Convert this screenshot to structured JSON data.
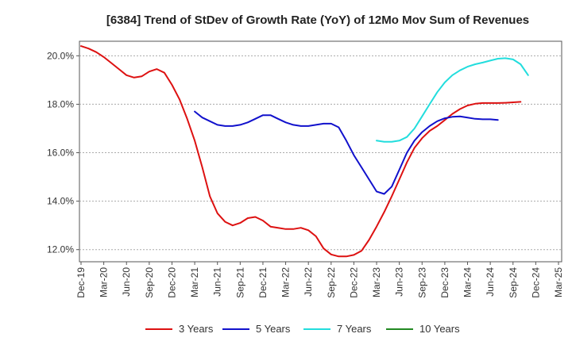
{
  "chart_data": {
    "type": "line",
    "title": "[6384]  Trend of StDev of Growth Rate (YoY) of 12Mo Mov Sum of Revenues",
    "xlabel": "",
    "ylabel": "",
    "x_tick_labels": [
      "Dec-19",
      "Mar-20",
      "Jun-20",
      "Sep-20",
      "Dec-20",
      "Mar-21",
      "Jun-21",
      "Sep-21",
      "Dec-21",
      "Mar-22",
      "Jun-22",
      "Sep-22",
      "Dec-22",
      "Mar-23",
      "Jun-23",
      "Sep-23",
      "Dec-23",
      "Mar-24",
      "Jun-24",
      "Sep-24",
      "Dec-24",
      "Mar-25"
    ],
    "y_tick_labels": [
      "12.0%",
      "14.0%",
      "16.0%",
      "18.0%",
      "20.0%"
    ],
    "y_ticks": [
      12,
      14,
      16,
      18,
      20
    ],
    "ylim": [
      11.5,
      20.6
    ],
    "x_range_months": [
      0,
      63
    ],
    "grid": "horizontal-dashed",
    "legend_position": "bottom",
    "series": [
      {
        "name": "3 Years",
        "color": "#dd1111",
        "start_month": 0,
        "values": [
          20.4,
          20.3,
          20.15,
          19.95,
          19.7,
          19.45,
          19.2,
          19.1,
          19.15,
          19.35,
          19.45,
          19.3,
          18.8,
          18.2,
          17.4,
          16.5,
          15.4,
          14.2,
          13.5,
          13.15,
          13.0,
          13.1,
          13.3,
          13.35,
          13.2,
          12.95,
          12.9,
          12.85,
          12.85,
          12.9,
          12.8,
          12.55,
          12.05,
          11.8,
          11.72,
          11.72,
          11.78,
          11.95,
          12.4,
          12.95,
          13.55,
          14.2,
          14.9,
          15.6,
          16.2,
          16.6,
          16.9,
          17.1,
          17.35,
          17.6,
          17.8,
          17.95,
          18.02,
          18.05,
          18.05,
          18.05,
          18.06,
          18.08,
          18.1
        ]
      },
      {
        "name": "5 Years",
        "color": "#1111cc",
        "start_month": 15,
        "values": [
          17.7,
          17.45,
          17.3,
          17.15,
          17.1,
          17.1,
          17.15,
          17.25,
          17.4,
          17.55,
          17.55,
          17.4,
          17.25,
          17.15,
          17.1,
          17.1,
          17.15,
          17.2,
          17.2,
          17.05,
          16.5,
          15.9,
          15.4,
          14.9,
          14.4,
          14.3,
          14.6,
          15.3,
          16.0,
          16.5,
          16.85,
          17.1,
          17.3,
          17.42,
          17.48,
          17.5,
          17.45,
          17.4,
          17.38,
          17.38,
          17.35
        ]
      },
      {
        "name": "7 Years",
        "color": "#22dddd",
        "start_month": 39,
        "values": [
          16.5,
          16.45,
          16.45,
          16.5,
          16.65,
          17.0,
          17.5,
          18.0,
          18.5,
          18.9,
          19.2,
          19.4,
          19.55,
          19.65,
          19.72,
          19.8,
          19.88,
          19.9,
          19.85,
          19.65,
          19.2
        ]
      },
      {
        "name": "10 Years",
        "color": "#228822",
        "start_month": 0,
        "values": []
      }
    ]
  }
}
